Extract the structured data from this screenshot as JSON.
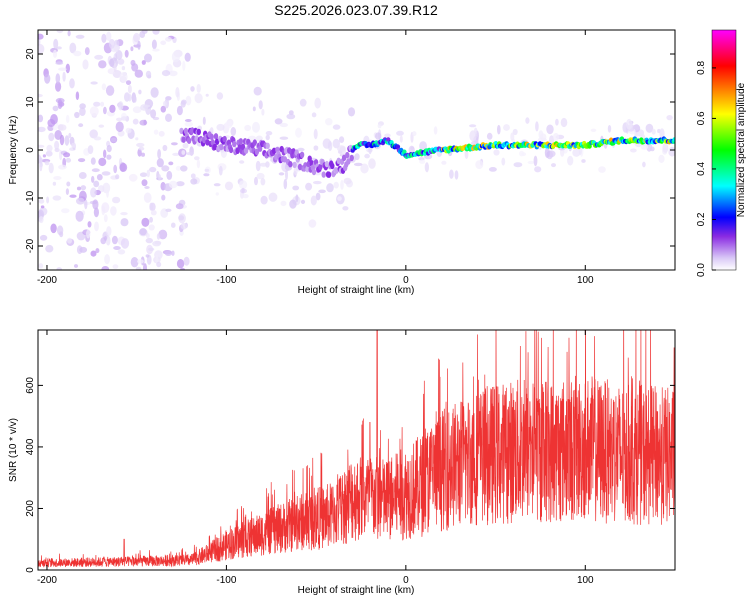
{
  "figure": {
    "title": "S225.2026.023.07.39.R12"
  },
  "chart_data": [
    {
      "type": "heatmap",
      "xlabel": "Height of straight line (km)",
      "ylabel": "Frequency (Hz)",
      "xlim": [
        -205,
        150
      ],
      "ylim": [
        -25,
        25
      ],
      "x_ticks": [
        -200,
        -100,
        0,
        100
      ],
      "y_ticks": [
        -20,
        -10,
        0,
        10,
        20
      ],
      "colorbar": {
        "label": "Normalized spectral amplitude",
        "range": [
          0,
          0.95
        ],
        "ticks": [
          0.0,
          0.2,
          0.4,
          0.6,
          0.8
        ],
        "colormap": [
          "#ffffff",
          "#d9c8f6",
          "#8a2be2",
          "#0000ff",
          "#00ffff",
          "#00ff00",
          "#ffff00",
          "#ff0000",
          "#ff00ff"
        ]
      },
      "ridge": {
        "x": [
          -120,
          -100,
          -80,
          -60,
          -45,
          -35,
          -28,
          -20,
          -10,
          0,
          20,
          50,
          80,
          100,
          120,
          150
        ],
        "y": [
          3,
          1,
          0,
          -2,
          -4,
          -3,
          1,
          1,
          2,
          -1,
          0,
          1,
          1,
          1,
          2,
          2
        ]
      },
      "noise_region_x": [
        -205,
        -120
      ]
    },
    {
      "type": "line",
      "xlabel": "Height of straight line (km)",
      "ylabel": "SNR (10 * v/v)",
      "xlim": [
        -205,
        150
      ],
      "ylim": [
        0,
        780
      ],
      "x_ticks": [
        -200,
        -100,
        0,
        100
      ],
      "y_ticks": [
        0,
        200,
        400,
        600
      ],
      "series_color": "#ee3333",
      "envelope": {
        "x": [
          -205,
          -160,
          -120,
          -110,
          -100,
          -80,
          -60,
          -40,
          -30,
          -20,
          -10,
          0,
          10,
          20,
          40,
          60,
          80,
          100,
          120,
          150
        ],
        "y": [
          25,
          30,
          35,
          60,
          90,
          130,
          170,
          200,
          260,
          260,
          250,
          280,
          310,
          360,
          410,
          430,
          430,
          440,
          420,
          410
        ]
      },
      "spikes": [
        {
          "x": -157,
          "y": 100
        },
        {
          "x": -16,
          "y": 790
        },
        {
          "x": -20,
          "y": 480
        }
      ]
    }
  ]
}
